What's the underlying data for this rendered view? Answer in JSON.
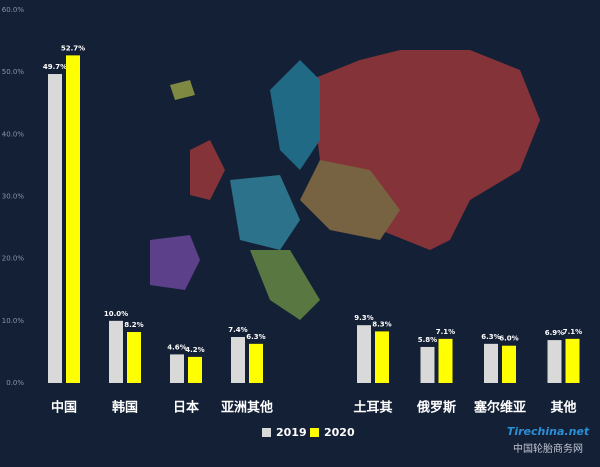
{
  "chart_data": {
    "type": "bar",
    "categories": [
      "中国",
      "韩国",
      "日本",
      "亚洲其他",
      "土耳其",
      "俄罗斯",
      "塞尔维亚",
      "其他"
    ],
    "series": [
      {
        "name": "2019",
        "color": "#d9d9d9",
        "values": [
          49.7,
          10.0,
          4.6,
          7.4,
          9.3,
          5.8,
          6.3,
          6.9
        ],
        "value_labels": [
          "49.7%",
          "10.0%",
          "4.6%",
          "7.4%",
          "9.3%",
          "5.8%",
          "6.3%",
          "6.9%"
        ]
      },
      {
        "name": "2020",
        "color": "#ffff00",
        "values": [
          52.7,
          8.2,
          4.2,
          6.3,
          8.3,
          7.1,
          6.0,
          7.1
        ],
        "value_labels": [
          "52.7%",
          "8.2%",
          "4.2%",
          "6.3%",
          "8.3%",
          "7.1%",
          "6.0%",
          "7.1%"
        ]
      }
    ],
    "ylim": [
      0,
      60
    ],
    "yticks": [
      {
        "value": 0,
        "label": "0.0%"
      },
      {
        "value": 10,
        "label": "10.0%"
      },
      {
        "value": 20,
        "label": "20.0%"
      },
      {
        "value": 30,
        "label": "30.0%"
      },
      {
        "value": 40,
        "label": "40.0%"
      },
      {
        "value": 50,
        "label": "50.0%"
      },
      {
        "value": 60,
        "label": "60.0%"
      }
    ],
    "legend": "bottom",
    "source_logo": "Tirechina.net",
    "source_text": "中国轮胎商务网"
  }
}
